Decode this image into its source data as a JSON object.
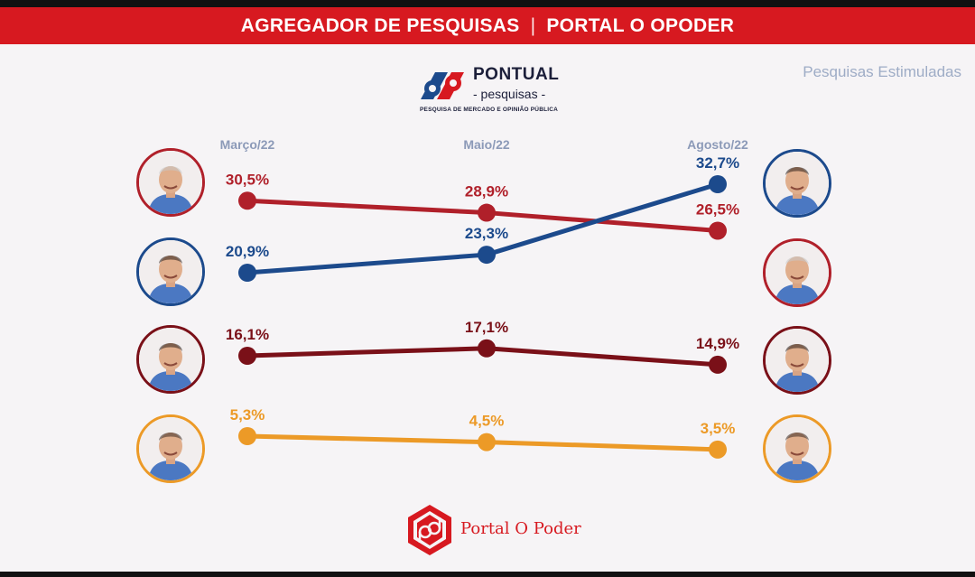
{
  "header": {
    "left": "AGREGADOR DE PESQUISAS",
    "separator": "|",
    "right": "PORTAL O OPODER"
  },
  "pontual": {
    "name": "PONTUAL",
    "sub": "- pesquisas -",
    "tagline": "PESQUISA DE MERCADO E OPINIÃO PÚBLICA"
  },
  "subtitle_right": "Pesquisas Estimuladas",
  "footer": {
    "brand": "Portal O Poder"
  },
  "chart_data": {
    "type": "line",
    "categories": [
      "Março/22",
      "Maio/22",
      "Agosto/22"
    ],
    "value_suffix": "%",
    "series": [
      {
        "key": "s1",
        "color": "#b0202a",
        "values": [
          30.5,
          28.9,
          26.5
        ],
        "labels": [
          "30,5%",
          "28,9%",
          "26,5%"
        ]
      },
      {
        "key": "s2",
        "color": "#1c4a8c",
        "values": [
          20.9,
          23.3,
          32.7
        ],
        "labels": [
          "20,9%",
          "23,3%",
          "32,7%"
        ]
      },
      {
        "key": "s3",
        "color": "#7a1018",
        "values": [
          16.1,
          17.1,
          14.9
        ],
        "labels": [
          "16,1%",
          "17,1%",
          "14,9%"
        ]
      },
      {
        "key": "s4",
        "color": "#ec9a27",
        "values": [
          5.3,
          4.5,
          3.5
        ],
        "labels": [
          "5,3%",
          "4,5%",
          "3,5%"
        ]
      }
    ],
    "left_avatar_order": [
      "s1",
      "s2",
      "s3",
      "s4"
    ],
    "right_avatar_order": [
      "s2",
      "s1",
      "s3",
      "s4"
    ],
    "category_label_color": "#8c9ab8"
  }
}
